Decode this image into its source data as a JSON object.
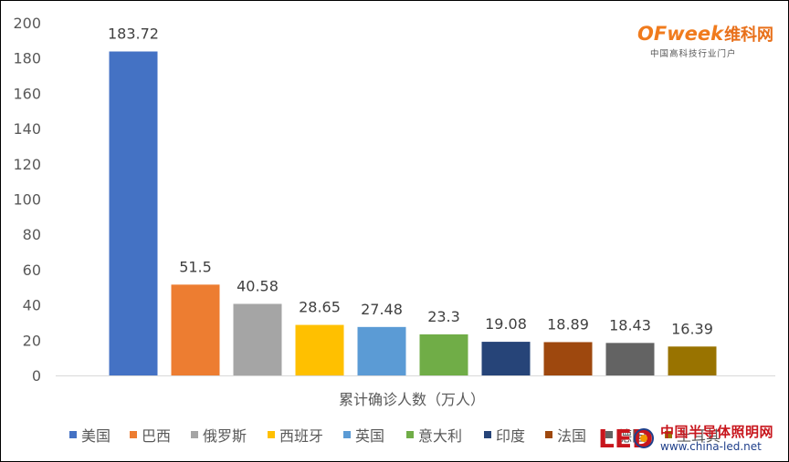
{
  "chart_data": {
    "type": "bar",
    "categories": [
      "美国",
      "巴西",
      "俄罗斯",
      "西班牙",
      "英国",
      "意大利",
      "印度",
      "法国",
      "德国",
      "土耳其"
    ],
    "values": [
      183.72,
      51.5,
      40.58,
      28.65,
      27.48,
      23.3,
      19.08,
      18.89,
      18.43,
      16.39
    ],
    "data_labels": [
      "183.72",
      "51.5",
      "40.58",
      "28.65",
      "27.48",
      "23.3",
      "19.08",
      "18.89",
      "18.43",
      "16.39"
    ],
    "colors": [
      "#4472c4",
      "#ed7d31",
      "#a5a5a5",
      "#ffc000",
      "#5b9bd5",
      "#70ad47",
      "#264478",
      "#9e480e",
      "#636363",
      "#997300"
    ],
    "xlabel": "累计确诊人数（万人）",
    "ylabel": "",
    "ylim": [
      0,
      200
    ],
    "yticks": [
      "0",
      "20",
      "40",
      "60",
      "80",
      "100",
      "120",
      "140",
      "160",
      "180",
      "200"
    ],
    "grid": false,
    "legend_position": "bottom"
  },
  "logos": {
    "ofweek_brand": "OFweek",
    "ofweek_cn": "维科网",
    "ofweek_tagline": "中国高科技行业门户",
    "led_mark": "LED",
    "led_site_cn": "中国半导体照明网",
    "led_site_url": "www.china-led.net"
  }
}
